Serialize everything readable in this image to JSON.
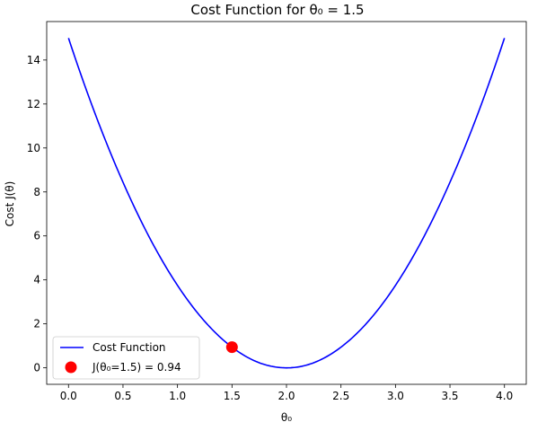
{
  "chart_data": {
    "type": "line",
    "title": "Cost Function for θ₀ = 1.5",
    "xlabel": "θ₀",
    "ylabel": "Cost J(θ)",
    "xlim": [
      -0.2,
      4.2
    ],
    "ylim": [
      -0.75,
      15.75
    ],
    "xticks": [
      "0.0",
      "0.5",
      "1.0",
      "1.5",
      "2.0",
      "2.5",
      "3.0",
      "3.5",
      "4.0"
    ],
    "yticks": [
      "0",
      "2",
      "4",
      "6",
      "8",
      "10",
      "12",
      "14"
    ],
    "grid": false,
    "legend_position": "lower-left",
    "series": [
      {
        "name": "Cost Function",
        "color": "#0000ff",
        "x": [
          0.0,
          0.25,
          0.5,
          0.75,
          1.0,
          1.25,
          1.5,
          1.75,
          2.0,
          2.25,
          2.5,
          2.75,
          3.0,
          3.25,
          3.5,
          3.75,
          4.0
        ],
        "y": [
          15.0,
          11.48,
          8.44,
          5.86,
          3.75,
          2.11,
          0.94,
          0.23,
          0.0,
          0.23,
          0.94,
          2.11,
          3.75,
          5.86,
          8.44,
          11.48,
          15.0
        ]
      }
    ],
    "points": [
      {
        "name": "J(θ₀=1.5) = 0.94",
        "x": 1.5,
        "y": 0.94,
        "color": "#ff0000"
      }
    ]
  }
}
